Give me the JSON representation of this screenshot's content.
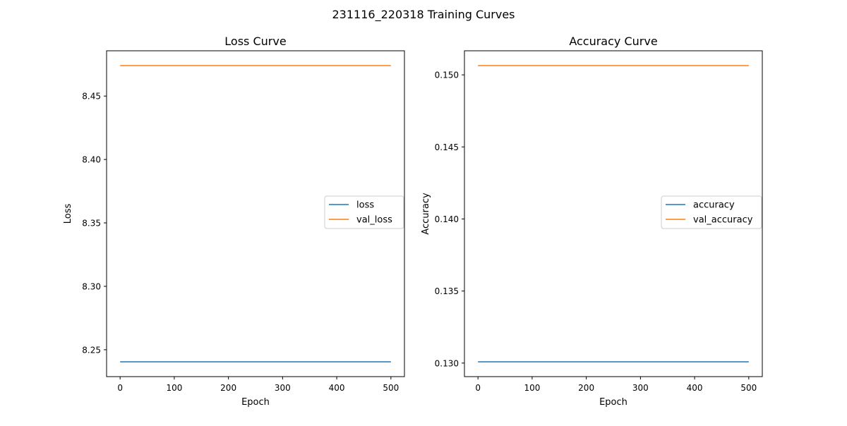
{
  "figure": {
    "suptitle": "231116_220318 Training Curves"
  },
  "colors": {
    "series_blue": "#1f77b4",
    "series_orange": "#ff7f0e",
    "axes": "#000000",
    "background": "#ffffff"
  },
  "chart_data": [
    {
      "type": "line",
      "title": "Loss Curve",
      "xlabel": "Epoch",
      "ylabel": "Loss",
      "xlim": [
        -25,
        525
      ],
      "ylim": [
        8.2288,
        8.4857
      ],
      "xticks": [
        0,
        100,
        200,
        300,
        400,
        500
      ],
      "yticks": [
        8.25,
        8.3,
        8.35,
        8.4,
        8.45
      ],
      "ytick_labels": [
        "8.25",
        "8.30",
        "8.35",
        "8.40",
        "8.45"
      ],
      "grid": false,
      "legend_position": "center-right",
      "series": [
        {
          "name": "loss",
          "color": "#1f77b4",
          "x": [
            0,
            500
          ],
          "y": [
            8.2405,
            8.2405
          ]
        },
        {
          "name": "val_loss",
          "color": "#ff7f0e",
          "x": [
            0,
            500
          ],
          "y": [
            8.474,
            8.474
          ]
        }
      ]
    },
    {
      "type": "line",
      "title": "Accuracy Curve",
      "xlabel": "Epoch",
      "ylabel": "Accuracy",
      "xlim": [
        -25,
        525
      ],
      "ylim": [
        0.12906,
        0.15167
      ],
      "xticks": [
        0,
        100,
        200,
        300,
        400,
        500
      ],
      "yticks": [
        0.13,
        0.135,
        0.14,
        0.145,
        0.15
      ],
      "ytick_labels": [
        "0.130",
        "0.135",
        "0.140",
        "0.145",
        "0.150"
      ],
      "grid": false,
      "legend_position": "center-right",
      "series": [
        {
          "name": "accuracy",
          "color": "#1f77b4",
          "x": [
            0,
            500
          ],
          "y": [
            0.13009,
            0.13009
          ]
        },
        {
          "name": "val_accuracy",
          "color": "#ff7f0e",
          "x": [
            0,
            500
          ],
          "y": [
            0.15064,
            0.15064
          ]
        }
      ]
    }
  ]
}
